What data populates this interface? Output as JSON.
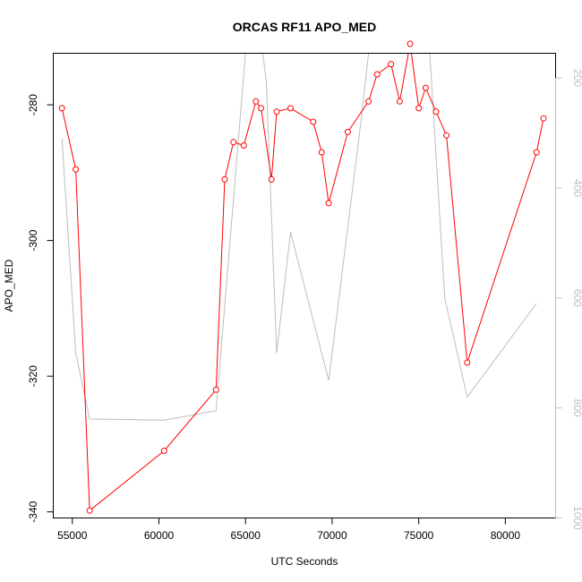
{
  "chart_data": {
    "type": "line",
    "title": "ORCAS RF11 APO_MED",
    "xlabel": "UTC Seconds",
    "ylabel": "APO_MED",
    "xlim": [
      53900,
      82900
    ],
    "ylim": [
      -340.9,
      -272.4
    ],
    "y2lim": [
      1000,
      155
    ],
    "xticks": [
      55000,
      60000,
      65000,
      70000,
      75000,
      80000
    ],
    "yticks": [
      -280,
      -300,
      -320,
      -340
    ],
    "y2ticks": [
      200,
      400,
      600,
      800,
      1000
    ],
    "colors": {
      "primary": "#ff0000",
      "secondary": "#bebebe"
    },
    "series": [
      {
        "color": "#ff0000",
        "axis": "left",
        "markers": "open-circle",
        "x": [
          54400,
          55200,
          56000,
          60300,
          63300,
          63800,
          64300,
          64900,
          65600,
          65900,
          66500,
          66800,
          67600,
          68900,
          69400,
          69800,
          70900,
          72100,
          72600,
          73400,
          73900,
          74500,
          75000,
          75400,
          76000,
          76600,
          77800,
          81800,
          82200
        ],
        "y": [
          -280.5,
          -289.5,
          -339.8,
          -331.0,
          -322.0,
          -291.0,
          -285.5,
          -286.0,
          -279.5,
          -280.5,
          -291.0,
          -281.0,
          -280.5,
          -282.5,
          -287.0,
          -294.5,
          -284.0,
          -279.5,
          -275.5,
          -274.0,
          -279.5,
          -271.0,
          -280.5,
          -277.5,
          -281.0,
          -284.5,
          -318.0,
          -287.0,
          -282.0
        ]
      },
      {
        "color": "#bebebe",
        "axis": "right",
        "markers": "none",
        "x": [
          54400,
          55200,
          56000,
          60300,
          63300,
          65000,
          65600,
          66200,
          66800,
          67600,
          69800,
          71700,
          72100,
          73300,
          73500,
          74600,
          75400,
          76500,
          77800,
          81800
        ],
        "y2": [
          310,
          700,
          820,
          822,
          805,
          155,
          60,
          205,
          700,
          480,
          750,
          270,
          155,
          40,
          155,
          155,
          30,
          600,
          780,
          610
        ]
      }
    ]
  }
}
